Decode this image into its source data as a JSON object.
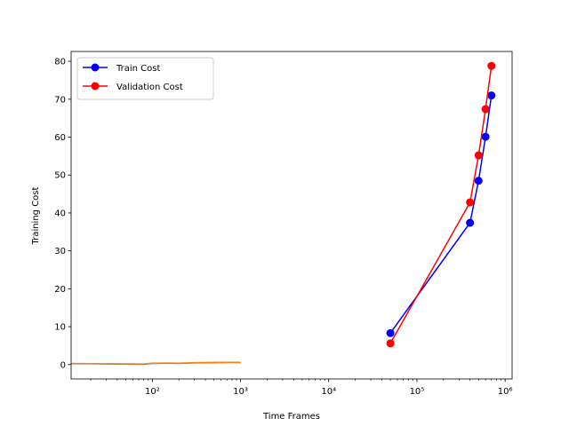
{
  "chart_data": {
    "type": "line",
    "title": "",
    "xlabel": "Time Frames",
    "ylabel": "Training Cost",
    "xscale": "log",
    "xlim": [
      12,
      1200000
    ],
    "ylim": [
      -3.8,
      82.6
    ],
    "x_ticks": [
      100,
      1000,
      10000,
      100000,
      1000000
    ],
    "x_tick_labels": [
      "10²",
      "10³",
      "10⁴",
      "10⁵",
      "10⁶"
    ],
    "y_ticks": [
      0,
      10,
      20,
      30,
      40,
      50,
      60,
      70,
      80
    ],
    "y_tick_labels": [
      "0",
      "10",
      "20",
      "30",
      "40",
      "50",
      "60",
      "70",
      "80"
    ],
    "grid": false,
    "legend_position": "upper-left",
    "series": [
      {
        "name": "Train Cost",
        "color": "#0000ff",
        "marker": "circle",
        "x": [
          50000,
          400000,
          500000,
          600000,
          700000
        ],
        "y": [
          8.3,
          37.4,
          48.5,
          60.1,
          71.0
        ]
      },
      {
        "name": "Validation Cost",
        "color": "#ff0000",
        "marker": "circle",
        "x": [
          50000,
          400000,
          500000,
          600000,
          700000
        ],
        "y": [
          5.6,
          42.8,
          55.2,
          67.4,
          78.8
        ]
      },
      {
        "color": "#1f77b4",
        "marker": "none",
        "x": [
          12,
          20,
          40,
          80,
          100,
          150,
          200,
          300,
          500,
          700,
          1000
        ],
        "y": [
          0.25,
          0.2,
          0.15,
          0.1,
          0.3,
          0.35,
          0.3,
          0.45,
          0.5,
          0.55,
          0.55
        ]
      },
      {
        "color": "#ff7f0e",
        "marker": "none",
        "x": [
          12,
          20,
          40,
          80,
          100,
          150,
          200,
          300,
          500,
          700,
          1000
        ],
        "y": [
          0.3,
          0.25,
          0.2,
          0.15,
          0.35,
          0.4,
          0.35,
          0.5,
          0.55,
          0.6,
          0.6
        ]
      }
    ]
  }
}
